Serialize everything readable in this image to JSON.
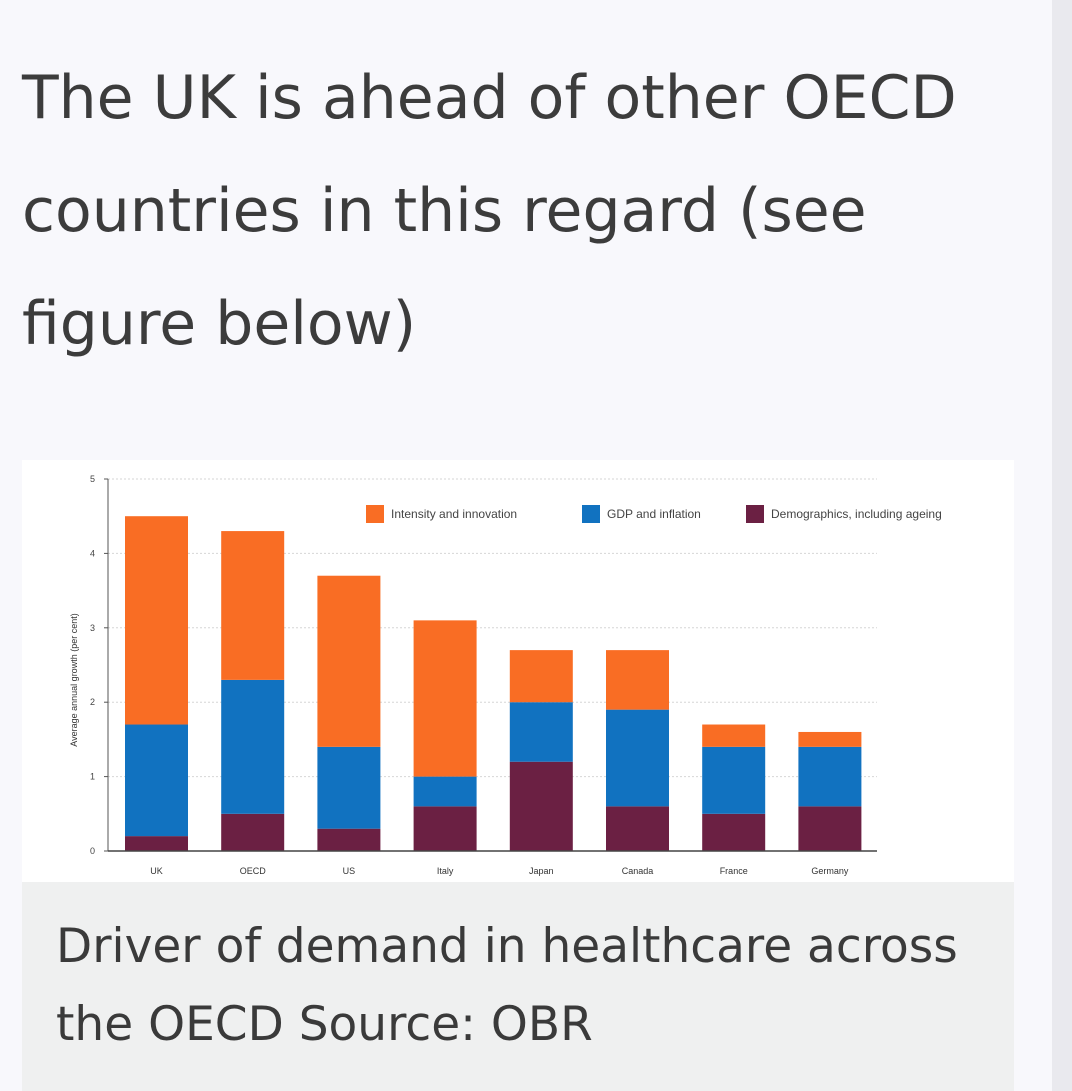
{
  "article": {
    "heading": "The UK is ahead of other OECD countries in this regard (see figure below)",
    "caption": "Driver of demand in healthcare across the OECD Source: OBR"
  },
  "chart_data": {
    "type": "bar",
    "stacked": true,
    "categories": [
      "UK",
      "OECD",
      "US",
      "Italy",
      "Japan",
      "Canada",
      "France",
      "Germany"
    ],
    "series": [
      {
        "name": "Demographics, including ageing",
        "color": "#6b2043",
        "values": [
          0.2,
          0.5,
          0.3,
          0.6,
          1.2,
          0.6,
          0.5,
          0.6
        ]
      },
      {
        "name": "GDP and inflation",
        "color": "#1172c0",
        "values": [
          1.5,
          1.8,
          1.1,
          0.4,
          0.8,
          1.3,
          0.9,
          0.8
        ]
      },
      {
        "name": "Intensity and innovation",
        "color": "#f96d24",
        "values": [
          2.8,
          2.0,
          2.3,
          2.1,
          0.7,
          0.8,
          0.3,
          0.2
        ]
      }
    ],
    "legend_order": [
      "Intensity and innovation",
      "GDP and inflation",
      "Demographics, including ageing"
    ],
    "ylabel": "Average annual growth (per cent)",
    "xlabel": "",
    "ylim": [
      0,
      5
    ],
    "yticks": [
      "0",
      "1",
      "2",
      "3",
      "4",
      "5"
    ],
    "grid": true,
    "legend_position": "top-right"
  }
}
